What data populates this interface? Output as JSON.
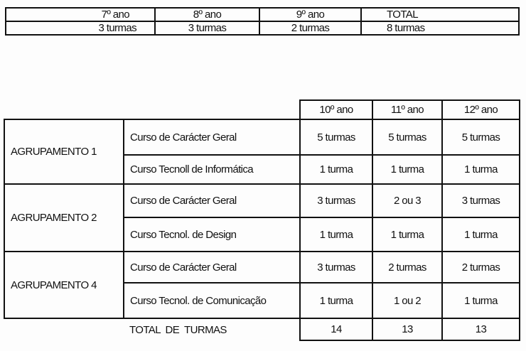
{
  "table1": {
    "headers": [
      "7º ano",
      "8º ano",
      "9º ano",
      "TOTAL"
    ],
    "values": [
      "3 turmas",
      "3 turmas",
      "2 turmas",
      "8 turmas"
    ]
  },
  "table2": {
    "headers": [
      "10º ano",
      "11º ano",
      "12º ano"
    ],
    "groups": [
      {
        "name": "AGRUPAMENTO 1",
        "courses": [
          {
            "course": "Curso de Carácter Geral",
            "values": [
              "5 turmas",
              "5 turmas",
              "5 turmas"
            ]
          },
          {
            "course": "Curso Tecnoll de Informática",
            "values": [
              "1 turma",
              "1 turma",
              "1 turma"
            ]
          }
        ]
      },
      {
        "name": "AGRUPAMENTO 2",
        "courses": [
          {
            "course": "Curso de Carácter Geral",
            "values": [
              "3 turmas",
              "2 ou 3",
              "3 turmas"
            ]
          },
          {
            "course": "Curso Tecnol. de Design",
            "values": [
              "1 turma",
              "1 turma",
              "1 turma"
            ]
          }
        ]
      },
      {
        "name": "AGRUPAMENTO 4",
        "courses": [
          {
            "course": "Curso de Carácter Geral",
            "values": [
              "3 turmas",
              "2 turmas",
              "2 turmas"
            ]
          },
          {
            "course": "Curso Tecnol. de Comunicação",
            "values": [
              "1 turma",
              "1 ou 2",
              "1 turma"
            ]
          }
        ]
      }
    ],
    "total_label": "TOTAL  DE  TURMAS",
    "totals": [
      "14",
      "13",
      "13"
    ]
  }
}
